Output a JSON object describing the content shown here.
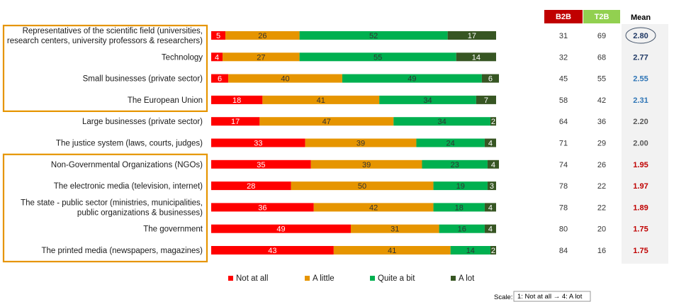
{
  "chart_data": {
    "type": "bar",
    "orientation": "horizontal",
    "stacked": true,
    "xlim": [
      0,
      100
    ],
    "categories": [
      [
        "Representatives of the scientific field (universities,",
        "research centers, university professors & researchers)"
      ],
      [
        "Technology"
      ],
      [
        "Small businesses (private sector)"
      ],
      [
        "The European Union"
      ],
      [
        "Large businesses (private sector)"
      ],
      [
        "The justice system (laws, courts, judges)"
      ],
      [
        "Non-Governmental Organizations (NGOs)"
      ],
      [
        "The electronic media (television, internet)"
      ],
      [
        "The state - public sector (ministries, municipalities,",
        "public organizations & businesses)"
      ],
      [
        "The government"
      ],
      [
        "The printed media (newspapers, magazines)"
      ]
    ],
    "series": [
      {
        "name": "Not at all",
        "color": "#ff0000",
        "text_color": "#ffffff",
        "values": [
          5,
          4,
          6,
          18,
          17,
          33,
          35,
          28,
          36,
          49,
          43
        ]
      },
      {
        "name": "A little",
        "color": "#e69500",
        "text_color": "#333333",
        "values": [
          26,
          27,
          40,
          41,
          47,
          39,
          39,
          50,
          42,
          31,
          41
        ]
      },
      {
        "name": "Quite a bit",
        "color": "#00b050",
        "text_color": "#333333",
        "values": [
          52,
          55,
          49,
          34,
          34,
          24,
          23,
          19,
          18,
          16,
          14
        ]
      },
      {
        "name": "A lot",
        "color": "#375623",
        "text_color": "#ffffff",
        "values": [
          17,
          14,
          6,
          7,
          2,
          4,
          4,
          3,
          4,
          4,
          2
        ]
      }
    ],
    "columns": {
      "b2b": {
        "label": "B2B",
        "color": "#c00000",
        "values": [
          31,
          32,
          45,
          58,
          64,
          71,
          74,
          78,
          78,
          80,
          84
        ]
      },
      "t2b": {
        "label": "T2B",
        "color": "#92d050",
        "values": [
          69,
          68,
          55,
          42,
          36,
          29,
          26,
          22,
          22,
          20,
          16
        ]
      },
      "mean": {
        "label": "Mean",
        "values": [
          "2.80",
          "2.77",
          "2.55",
          "2.31",
          "2.20",
          "2.00",
          "1.95",
          "1.97",
          "1.89",
          "1.75",
          "1.75"
        ],
        "colors": [
          "#1f3864",
          "#1f3864",
          "#2e75b6",
          "#2e75b6",
          "#595959",
          "#595959",
          "#c00000",
          "#c00000",
          "#c00000",
          "#c00000",
          "#c00000"
        ]
      }
    },
    "highlight_groups": [
      [
        0,
        3
      ],
      [
        6,
        10
      ]
    ],
    "highlight_color": "#e69500",
    "legend_position": "bottom",
    "scale": {
      "label": "Scale:",
      "text": "1: Not at all → 4: A lot"
    }
  }
}
